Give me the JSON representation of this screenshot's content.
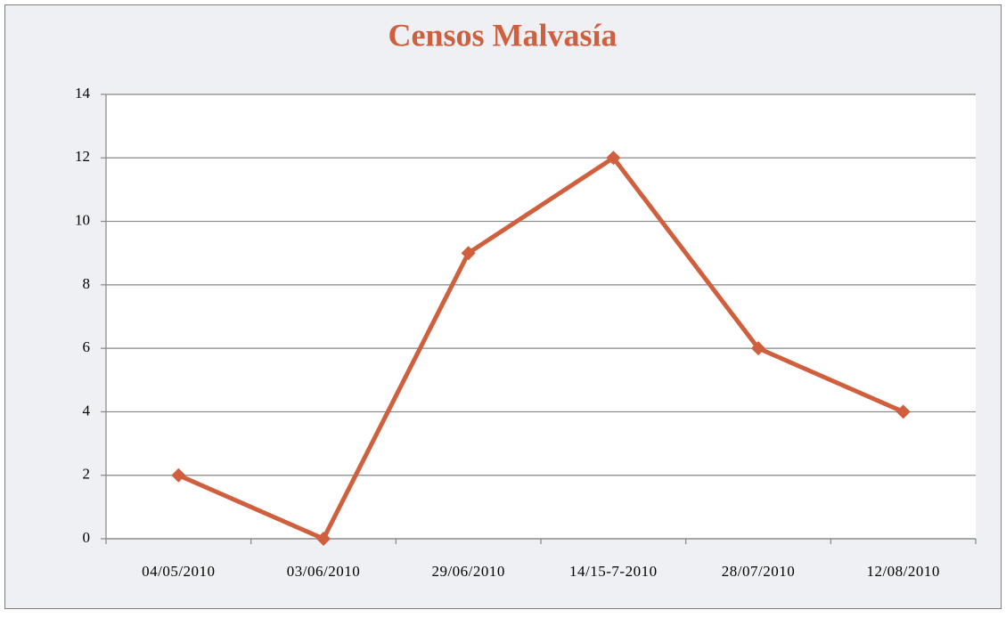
{
  "chart_data": {
    "type": "line",
    "title": "Censos Malvasía",
    "categories": [
      "04/05/2010",
      "03/06/2010",
      "29/06/2010",
      "14/15-7-2010",
      "28/07/2010",
      "12/08/2010"
    ],
    "values": [
      2,
      0,
      9,
      12,
      6,
      4
    ],
    "color": "#cf5f3d",
    "ylim": [
      0,
      14
    ],
    "yticks": [
      0,
      2,
      4,
      6,
      8,
      10,
      12,
      14
    ],
    "grid": true
  }
}
